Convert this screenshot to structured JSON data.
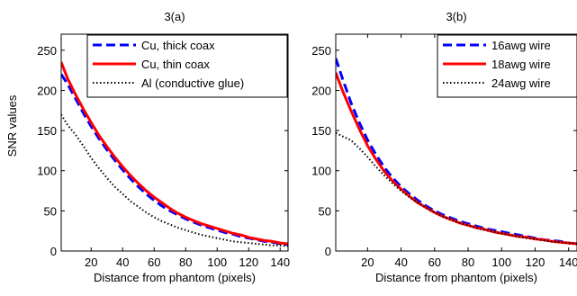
{
  "figure": {
    "shared_ylabel": "SNR values"
  },
  "chart_data": [
    {
      "type": "line",
      "title": "3(a)",
      "xlabel": "Distance from phantom (pixels)",
      "ylabel": "SNR values",
      "xlim": [
        1,
        145
      ],
      "ylim": [
        0,
        270
      ],
      "xticks": [
        20,
        40,
        60,
        80,
        100,
        120,
        140
      ],
      "yticks": [
        0,
        50,
        100,
        150,
        200,
        250
      ],
      "legend_position": "top-right",
      "grid": false,
      "series": [
        {
          "name": "Cu, thick coax",
          "color": "#0000ff",
          "dash": "dashed",
          "x": [
            1,
            5,
            10,
            15,
            20,
            25,
            30,
            35,
            40,
            45,
            50,
            55,
            60,
            65,
            70,
            75,
            80,
            85,
            90,
            95,
            100,
            105,
            110,
            115,
            120,
            125,
            130,
            135,
            140,
            145
          ],
          "y": [
            220,
            208,
            190,
            172,
            155,
            140,
            126,
            113,
            101,
            90,
            80,
            71,
            63,
            56,
            50,
            45,
            40,
            36,
            32,
            29,
            26,
            23,
            21,
            18,
            16,
            14,
            12,
            11,
            9,
            8
          ]
        },
        {
          "name": "Cu, thin coax",
          "color": "#ff0000",
          "dash": "solid",
          "x": [
            1,
            5,
            10,
            15,
            20,
            25,
            30,
            35,
            40,
            45,
            50,
            55,
            60,
            65,
            70,
            75,
            80,
            85,
            90,
            95,
            100,
            105,
            110,
            115,
            120,
            125,
            130,
            135,
            140,
            145
          ],
          "y": [
            235,
            215,
            195,
            177,
            160,
            144,
            130,
            117,
            105,
            94,
            84,
            75,
            67,
            60,
            53,
            47,
            42,
            38,
            34,
            31,
            28,
            25,
            22,
            20,
            17,
            15,
            13,
            12,
            10,
            9
          ]
        },
        {
          "name": "Al (conductive glue)",
          "color": "#000000",
          "dash": "dotted",
          "x": [
            1,
            5,
            10,
            15,
            20,
            25,
            30,
            35,
            40,
            45,
            50,
            55,
            60,
            65,
            70,
            75,
            80,
            85,
            90,
            95,
            100,
            105,
            110,
            115,
            120,
            125,
            130,
            135,
            140,
            145
          ],
          "y": [
            170,
            157,
            145,
            131,
            116,
            103,
            91,
            80,
            71,
            62,
            55,
            48,
            42,
            37,
            33,
            29,
            26,
            23,
            20,
            18,
            16,
            14,
            12,
            11,
            10,
            9,
            8,
            7,
            7,
            6
          ]
        }
      ]
    },
    {
      "type": "line",
      "title": "3(b)",
      "xlabel": "Distance from phantom (pixels)",
      "ylabel": "",
      "xlim": [
        1,
        145
      ],
      "ylim": [
        0,
        270
      ],
      "xticks": [
        20,
        40,
        60,
        80,
        100,
        120,
        140
      ],
      "yticks": [
        0,
        50,
        100,
        150,
        200,
        250
      ],
      "legend_position": "top-right",
      "grid": false,
      "series": [
        {
          "name": "16awg wire",
          "color": "#0000ff",
          "dash": "dashed",
          "x": [
            1,
            5,
            10,
            15,
            20,
            25,
            30,
            35,
            40,
            45,
            50,
            55,
            60,
            65,
            70,
            75,
            80,
            85,
            90,
            95,
            100,
            105,
            110,
            115,
            120,
            125,
            130,
            135,
            140,
            145
          ],
          "y": [
            240,
            215,
            185,
            160,
            138,
            120,
            104,
            91,
            80,
            71,
            63,
            56,
            50,
            45,
            41,
            37,
            34,
            31,
            28,
            26,
            24,
            22,
            20,
            18,
            16,
            14,
            13,
            12,
            10,
            9
          ]
        },
        {
          "name": "18awg wire",
          "color": "#ff0000",
          "dash": "solid",
          "x": [
            1,
            5,
            10,
            15,
            20,
            25,
            30,
            35,
            40,
            45,
            50,
            55,
            60,
            65,
            70,
            75,
            80,
            85,
            90,
            95,
            100,
            105,
            110,
            115,
            120,
            125,
            130,
            135,
            140,
            145
          ],
          "y": [
            222,
            200,
            175,
            152,
            131,
            114,
            99,
            87,
            77,
            68,
            60,
            54,
            48,
            43,
            39,
            35,
            32,
            29,
            27,
            24,
            22,
            20,
            18,
            17,
            15,
            14,
            12,
            11,
            10,
            9
          ]
        },
        {
          "name": "24awg wire",
          "color": "#000000",
          "dash": "dotted",
          "x": [
            1,
            5,
            10,
            15,
            20,
            25,
            30,
            35,
            40,
            45,
            50,
            55,
            60,
            65,
            70,
            75,
            80,
            85,
            90,
            95,
            100,
            105,
            110,
            115,
            120,
            125,
            130,
            135,
            140,
            145
          ],
          "y": [
            147,
            143,
            138,
            128,
            117,
            105,
            94,
            84,
            75,
            67,
            60,
            54,
            48,
            43,
            39,
            35,
            32,
            29,
            26,
            24,
            22,
            20,
            18,
            16,
            15,
            13,
            12,
            11,
            10,
            9
          ]
        }
      ]
    }
  ]
}
